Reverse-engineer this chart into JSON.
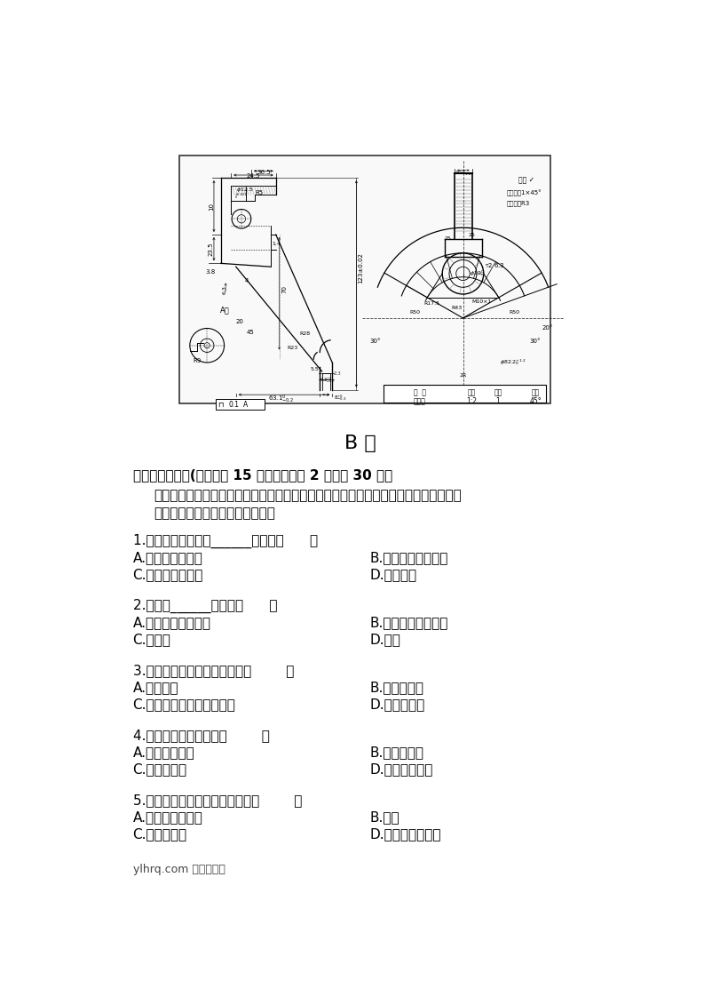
{
  "page_bg": "#ffffff",
  "title_b_juan": "B 卷",
  "section_title": "一、单项选择题(本大题共 15 小题，每小题 2 分，共 30 分）",
  "instruction_line1": "在每小题列出的四个备选项中只有一个是符合题目要求的，请将其代码填写在题后的括",
  "instruction_line2": "号内。错选、多选或未选均无分。",
  "questions": [
    {
      "q": "1.机构运动简图必须______绘制．（      ）",
      "options": [
        "A.按构件比例尺寸",
        "B.不按构件比例尺寸",
        "C.按构件实际尺寸",
        "D.缩小尺寸"
      ]
    },
    {
      "q": "2.构件由______组成．（      ）",
      "options": [
        "A.零件通过活动链接",
        "B.零件通过固定连接",
        "C.运动副",
        "D.部件"
      ]
    },
    {
      "q": "3.平面汇交力系平衡的条件是（        ）",
      "options": [
        "A.合力为零",
        "B.合力矩为零",
        "C.合力为零，合力矩不为零",
        "D.合力不为零"
      ]
    },
    {
      "q": "4.汽车转向传动机构是（        ）",
      "options": [
        "A.曲柄摇杆机构",
        "B.双摇杆机构",
        "C.双曲柄机构",
        "D.曲柄连杆机构"
      ]
    },
    {
      "q": "5.带传动的主要失效形式是带的（        ）",
      "options": [
        "A.疲劳拉断和打滑",
        "B.磨损",
        "C.磨损和胶合",
        "D.磨损和疲劳点蚀"
      ]
    }
  ],
  "footer_text": "ylhrq.com 板式热交换",
  "text_color": "#000000"
}
